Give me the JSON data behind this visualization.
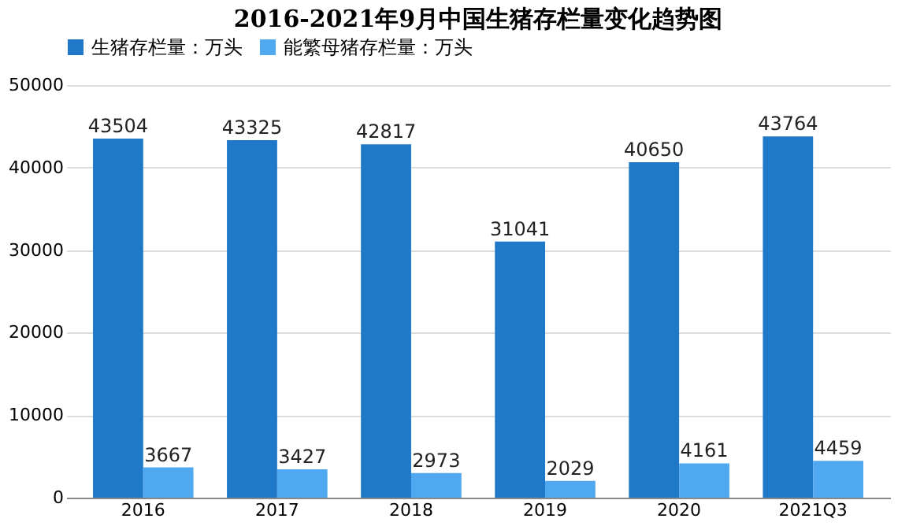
{
  "chart_data": {
    "type": "bar",
    "title": "2016-2021年9月中国生猪存栏量变化趋势图",
    "categories": [
      "2016",
      "2017",
      "2018",
      "2019",
      "2020",
      "2021Q3"
    ],
    "series": [
      {
        "name": "生猪存栏量：万头",
        "color": "#1f78c8",
        "values": [
          43504,
          43325,
          42817,
          31041,
          40650,
          43764
        ]
      },
      {
        "name": "能繁母猪存栏量：万头",
        "color": "#4fa8f0",
        "values": [
          3667,
          3427,
          2973,
          2029,
          4161,
          4459
        ]
      }
    ],
    "ylim": [
      0,
      50000
    ],
    "yticks": [
      0,
      10000,
      20000,
      30000,
      40000,
      50000
    ],
    "grid": "y",
    "legend": "top",
    "data_labels": true
  }
}
